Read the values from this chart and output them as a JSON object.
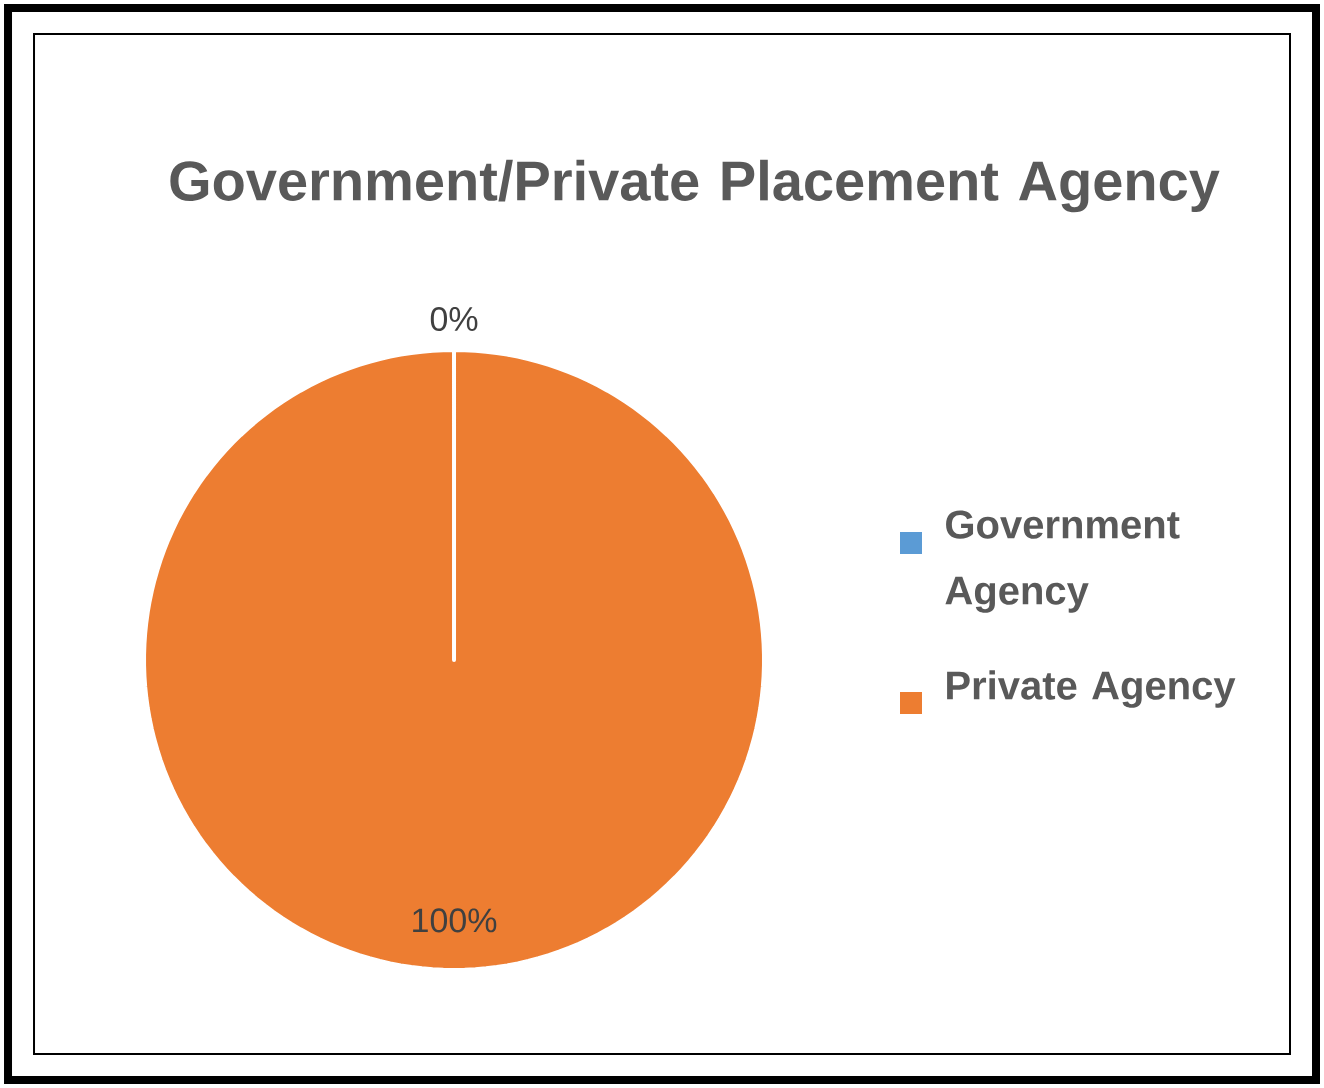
{
  "chart_data": {
    "type": "pie",
    "title": "Government/Private Placement Agency",
    "categories": [
      "Government Agency",
      "Private Agency"
    ],
    "values": [
      0,
      100
    ],
    "colors": [
      "#5b9bd5",
      "#ed7d31"
    ],
    "value_labels": [
      "0%",
      "100%"
    ],
    "legend": "right"
  }
}
